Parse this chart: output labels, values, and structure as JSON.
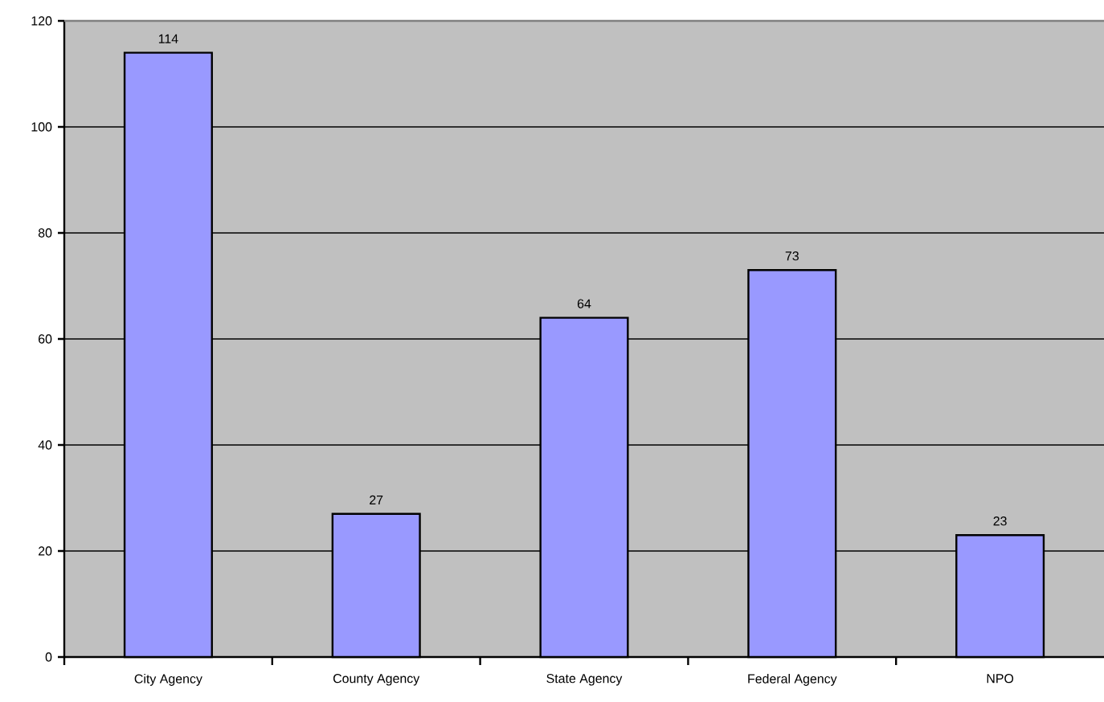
{
  "chart_data": {
    "type": "bar",
    "categories": [
      "City Agency",
      "County Agency",
      "State Agency",
      "Federal Agency",
      "NPO"
    ],
    "values": [
      114,
      27,
      64,
      73,
      23
    ],
    "color": "#9999ff",
    "ylim": [
      0,
      120
    ],
    "yticks": [
      0,
      20,
      40,
      60,
      80,
      100,
      120
    ],
    "grid": "y",
    "data_labels": true
  }
}
